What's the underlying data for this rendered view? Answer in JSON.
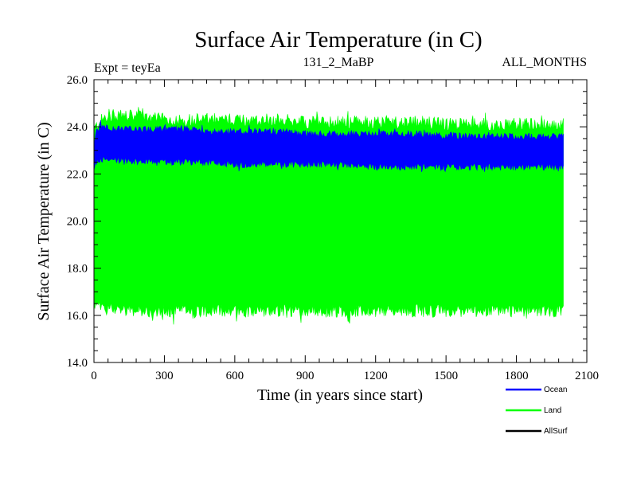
{
  "chart_data": {
    "type": "area",
    "title": "Surface Air Temperature (in C)",
    "subtitle_left": "Expt = teyEa",
    "subtitle_center": "131_2_MaBP",
    "subtitle_right": "ALL_MONTHS",
    "xlabel": "Time (in years since start)",
    "ylabel": "Surface Air Temperature (in C)",
    "xlim": [
      0,
      2100
    ],
    "ylim": [
      14.0,
      26.0
    ],
    "x_ticks": [
      0,
      300,
      600,
      900,
      1200,
      1500,
      1800,
      2100
    ],
    "x_tick_labels": [
      "0",
      "300",
      "600",
      "900",
      "1200",
      "1500",
      "1800",
      "2100"
    ],
    "y_ticks": [
      14,
      16,
      18,
      20,
      22,
      24,
      26
    ],
    "y_tick_labels": [
      "14.0",
      "16.0",
      "18.0",
      "20.0",
      "22.0",
      "24.0",
      "26.0"
    ],
    "grid": false,
    "legend_position": "bottom-right",
    "series": [
      {
        "name": "Land",
        "color": "#00ff00",
        "x": [
          0,
          10,
          20,
          50,
          100,
          200,
          300,
          400,
          500,
          600,
          700,
          800,
          900,
          1000,
          1100,
          1200,
          1300,
          1400,
          1500,
          1600,
          1700,
          1800,
          1900,
          2000
        ],
        "upper": [
          23.9,
          24.0,
          24.2,
          24.4,
          24.5,
          24.4,
          24.3,
          24.3,
          24.3,
          24.3,
          24.3,
          24.3,
          24.2,
          24.2,
          24.2,
          24.2,
          24.2,
          24.2,
          24.1,
          24.1,
          24.1,
          24.1,
          24.1,
          24.1
        ],
        "lower": [
          16.5,
          16.4,
          16.3,
          16.3,
          16.3,
          16.2,
          16.2,
          16.2,
          16.2,
          16.2,
          16.2,
          16.2,
          16.2,
          16.2,
          16.2,
          16.2,
          16.2,
          16.2,
          16.2,
          16.2,
          16.2,
          16.2,
          16.2,
          16.2
        ]
      },
      {
        "name": "Ocean",
        "color": "#0000ff",
        "x": [
          0,
          10,
          20,
          50,
          100,
          200,
          300,
          400,
          500,
          600,
          700,
          800,
          900,
          1000,
          1100,
          1200,
          1300,
          1400,
          1500,
          1600,
          1700,
          1800,
          1900,
          2000
        ],
        "upper": [
          23.4,
          23.8,
          24.0,
          24.0,
          23.9,
          23.9,
          23.9,
          23.9,
          23.8,
          23.8,
          23.8,
          23.8,
          23.7,
          23.7,
          23.7,
          23.7,
          23.7,
          23.7,
          23.6,
          23.6,
          23.6,
          23.6,
          23.6,
          23.6
        ],
        "lower": [
          22.2,
          22.5,
          22.6,
          22.6,
          22.6,
          22.5,
          22.5,
          22.5,
          22.5,
          22.4,
          22.4,
          22.4,
          22.4,
          22.4,
          22.4,
          22.3,
          22.3,
          22.3,
          22.3,
          22.3,
          22.3,
          22.3,
          22.3,
          22.3
        ]
      },
      {
        "name": "AllSurf",
        "color": "#000000",
        "x": [],
        "upper": [],
        "lower": []
      }
    ]
  }
}
